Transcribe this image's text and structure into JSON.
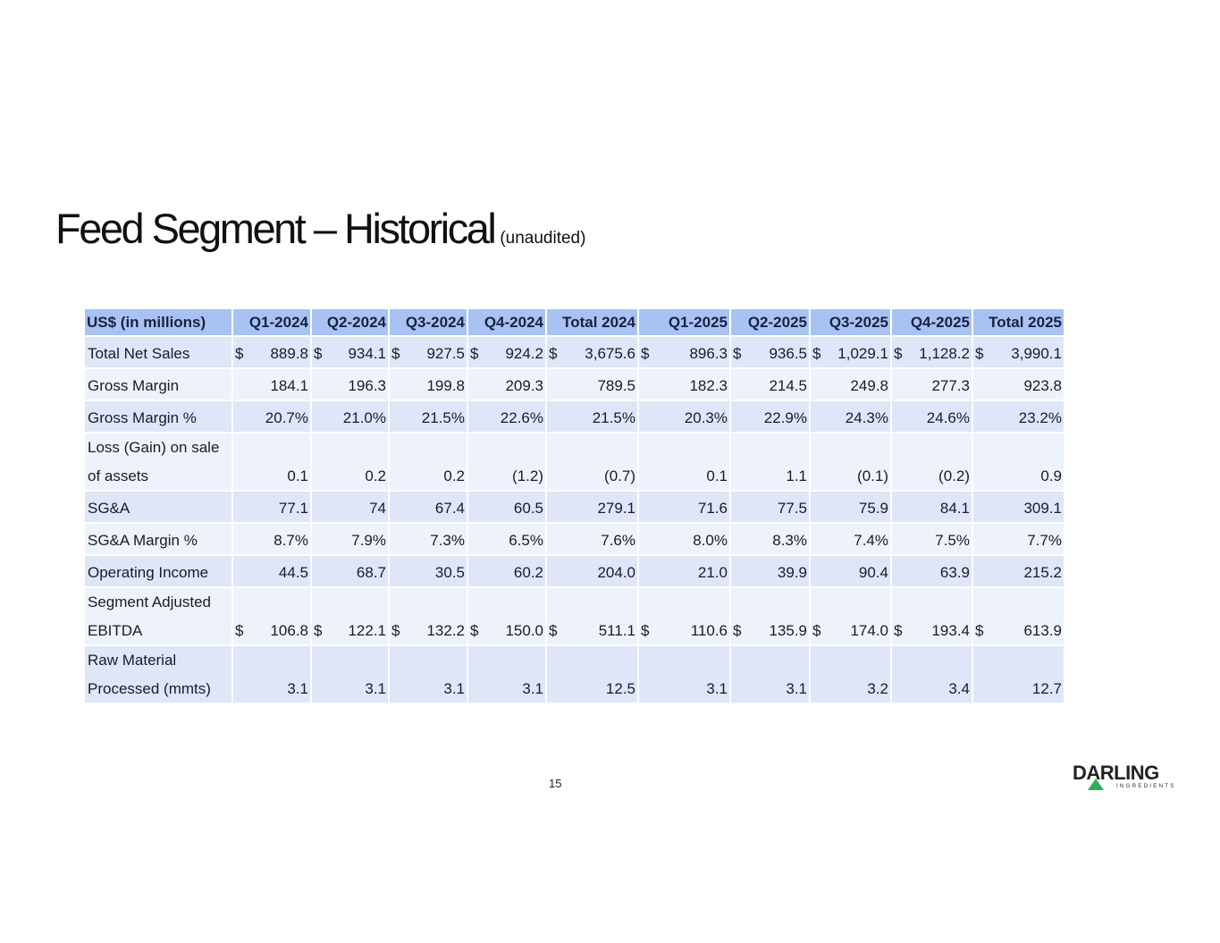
{
  "title": "Feed Segment – Historical",
  "subtitle": "(unaudited)",
  "table": {
    "headers": [
      "US$ (in millions)",
      "Q1-2024",
      "Q2-2024",
      "Q3-2024",
      "Q4-2024",
      "Total 2024",
      "Q1-2025",
      "Q2-2025",
      "Q3-2025",
      "Q4-2025",
      "Total 2025"
    ],
    "rows": [
      {
        "label": [
          "Total Net Sales"
        ],
        "dollar": true,
        "values": [
          "889.8",
          "934.1",
          "927.5",
          "924.2",
          "3,675.6",
          "896.3",
          "936.5",
          "1,029.1",
          "1,128.2",
          "3,990.1"
        ]
      },
      {
        "label": [
          "Gross Margin"
        ],
        "dollar": false,
        "values": [
          "184.1",
          "196.3",
          "199.8",
          "209.3",
          "789.5",
          "182.3",
          "214.5",
          "249.8",
          "277.3",
          "923.8"
        ]
      },
      {
        "label": [
          "Gross Margin %"
        ],
        "dollar": false,
        "values": [
          "20.7%",
          "21.0%",
          "21.5%",
          "22.6%",
          "21.5%",
          "20.3%",
          "22.9%",
          "24.3%",
          "24.6%",
          "23.2%"
        ]
      },
      {
        "label": [
          "Loss (Gain) on sale",
          "of assets"
        ],
        "dollar": false,
        "values": [
          "0.1",
          "0.2",
          "0.2",
          "(1.2)",
          "(0.7)",
          "0.1",
          "1.1",
          "(0.1)",
          "(0.2)",
          "0.9"
        ]
      },
      {
        "label": [
          "SG&A"
        ],
        "dollar": false,
        "values": [
          "77.1",
          "74",
          "67.4",
          "60.5",
          "279.1",
          "71.6",
          "77.5",
          "75.9",
          "84.1",
          "309.1"
        ]
      },
      {
        "label": [
          "SG&A Margin %"
        ],
        "dollar": false,
        "values": [
          "8.7%",
          "7.9%",
          "7.3%",
          "6.5%",
          "7.6%",
          "8.0%",
          "8.3%",
          "7.4%",
          "7.5%",
          "7.7%"
        ]
      },
      {
        "label": [
          "Operating Income"
        ],
        "dollar": false,
        "values": [
          "44.5",
          "68.7",
          "30.5",
          "60.2",
          "204.0",
          "21.0",
          "39.9",
          "90.4",
          "63.9",
          "215.2"
        ]
      },
      {
        "label": [
          "Segment Adjusted",
          "EBITDA"
        ],
        "dollar": true,
        "values": [
          "106.8",
          "122.1",
          "132.2",
          "150.0",
          "511.1",
          "110.6",
          "135.9",
          "174.0",
          "193.4",
          "613.9"
        ]
      },
      {
        "label": [
          "Raw Material",
          "Processed (mmts)"
        ],
        "dollar": false,
        "values": [
          "3.1",
          "3.1",
          "3.1",
          "3.1",
          "12.5",
          "3.1",
          "3.1",
          "3.2",
          "3.4",
          "12.7"
        ]
      }
    ],
    "currency_symbol": "$"
  },
  "page_number": "15",
  "logo": {
    "word": "DARLING",
    "sub": "INGREDIENTS"
  },
  "colors": {
    "header": "#a8c3f3",
    "band_dark": "#dee6f8",
    "band_light": "#eef2fc",
    "logo_green": "#2fae5b"
  }
}
